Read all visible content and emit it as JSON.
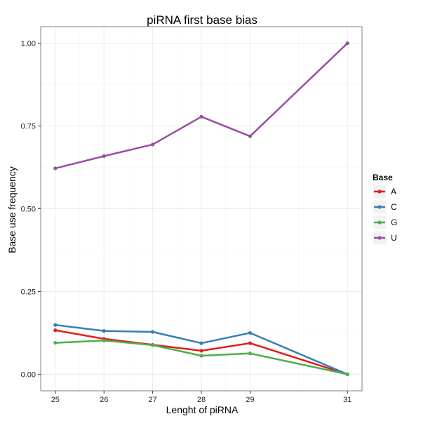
{
  "chart_data": {
    "type": "line",
    "title": "piRNA first base bias",
    "xlabel": "Lenght of piRNA",
    "ylabel": "Base use frequency",
    "x": [
      25,
      26,
      27,
      28,
      29,
      31
    ],
    "x_ticks": [
      "25",
      "26",
      "27",
      "28",
      "29",
      "31"
    ],
    "y_ticks": [
      "0.00",
      "0.25",
      "0.50",
      "0.75",
      "1.00"
    ],
    "xlim": [
      24.7,
      31.3
    ],
    "ylim": [
      -0.05,
      1.05
    ],
    "grid": true,
    "legend": {
      "title": "Base",
      "placement": "right"
    },
    "series": [
      {
        "name": "A",
        "color": "#e41a1c",
        "values": [
          0.133,
          0.107,
          0.089,
          0.071,
          0.094,
          0.0
        ]
      },
      {
        "name": "C",
        "color": "#377eb8",
        "values": [
          0.149,
          0.131,
          0.128,
          0.094,
          0.125,
          0.0
        ]
      },
      {
        "name": "G",
        "color": "#4daf4a",
        "values": [
          0.095,
          0.102,
          0.088,
          0.056,
          0.063,
          0.0
        ]
      },
      {
        "name": "U",
        "color": "#984ea3",
        "values": [
          0.622,
          0.659,
          0.694,
          0.778,
          0.719,
          1.0
        ]
      }
    ]
  }
}
